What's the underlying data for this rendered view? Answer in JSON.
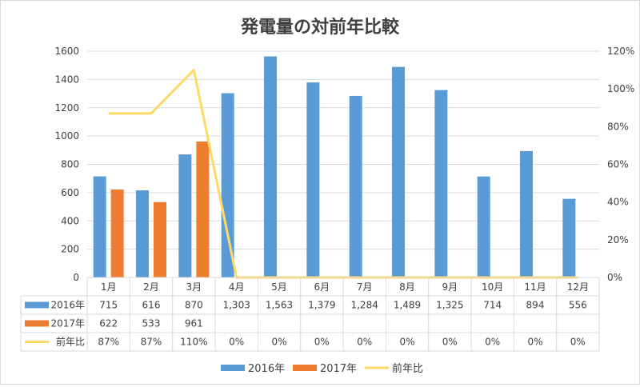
{
  "chart_data": {
    "type": "bar",
    "title": "発電量の対前年比較",
    "categories": [
      "1月",
      "2月",
      "3月",
      "4月",
      "5月",
      "6月",
      "7月",
      "8月",
      "9月",
      "10月",
      "11月",
      "12月"
    ],
    "series": [
      {
        "name": "2016年",
        "kind": "bar",
        "axis": "left",
        "color": "#5b9bd5",
        "values": [
          715,
          616,
          870,
          1303,
          1563,
          1379,
          1284,
          1489,
          1325,
          714,
          894,
          556
        ],
        "labels": [
          "715",
          "616",
          "870",
          "1,303",
          "1,563",
          "1,379",
          "1,284",
          "1,489",
          "1,325",
          "714",
          "894",
          "556"
        ]
      },
      {
        "name": "2017年",
        "kind": "bar",
        "axis": "left",
        "color": "#ed7d31",
        "values": [
          622,
          533,
          961,
          null,
          null,
          null,
          null,
          null,
          null,
          null,
          null,
          null
        ],
        "labels": [
          "622",
          "533",
          "961",
          "",
          "",
          "",
          "",
          "",
          "",
          "",
          "",
          ""
        ]
      },
      {
        "name": "前年比",
        "kind": "line",
        "axis": "right",
        "color": "#ffd966",
        "values": [
          87,
          87,
          110,
          0,
          0,
          0,
          0,
          0,
          0,
          0,
          0,
          0
        ],
        "labels": [
          "87%",
          "87%",
          "110%",
          "0%",
          "0%",
          "0%",
          "0%",
          "0%",
          "0%",
          "0%",
          "0%",
          "0%"
        ]
      }
    ],
    "y_left": {
      "min": 0,
      "max": 1600,
      "step": 200,
      "ticks": [
        "0",
        "200",
        "400",
        "600",
        "800",
        "1000",
        "1200",
        "1400",
        "1600"
      ]
    },
    "y_right": {
      "min": 0,
      "max": 120,
      "step": 20,
      "ticks": [
        "0%",
        "20%",
        "40%",
        "60%",
        "80%",
        "100%",
        "120%"
      ]
    },
    "data_table": true,
    "legend_position": "bottom"
  }
}
